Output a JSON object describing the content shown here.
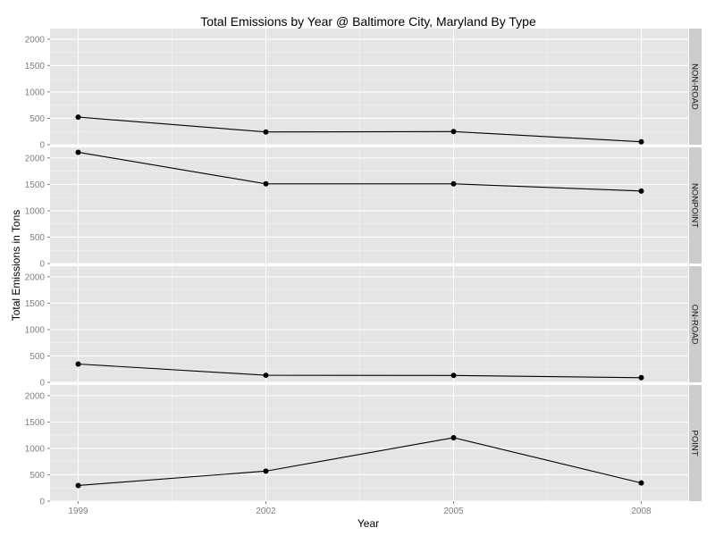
{
  "chart_data": {
    "type": "line",
    "title": "Total Emissions by Year @ Baltimore City, Maryland By Type",
    "xlabel": "Year",
    "ylabel": "Total Emissions in Tons",
    "x": [
      1999,
      2002,
      2005,
      2008
    ],
    "x_ticks": [
      "1999",
      "2002",
      "2005",
      "2008"
    ],
    "ylim": [
      0,
      2200
    ],
    "y_ticks": [
      "0",
      "500",
      "1000",
      "1500",
      "2000"
    ],
    "grid": true,
    "legend": "none",
    "facets": [
      "NON-ROAD",
      "NONPOINT",
      "ON-ROAD",
      "POINT"
    ],
    "series": [
      {
        "name": "NON-ROAD",
        "values": [
          522.9,
          242.0,
          248.9,
          55.8
        ]
      },
      {
        "name": "NONPOINT",
        "values": [
          2107.6,
          1509.5,
          1509.5,
          1373.2
        ]
      },
      {
        "name": "ON-ROAD",
        "values": [
          346.8,
          134.3,
          130.4,
          88.3
        ]
      },
      {
        "name": "POINT",
        "values": [
          296.8,
          569.3,
          1202.5,
          344.98
        ]
      }
    ],
    "colors": {
      "panel": "#e5e5e5",
      "grid_major": "#ffffff",
      "grid_minor": "#f2f2f2",
      "strip": "#cccccc",
      "line": "#000000"
    }
  }
}
